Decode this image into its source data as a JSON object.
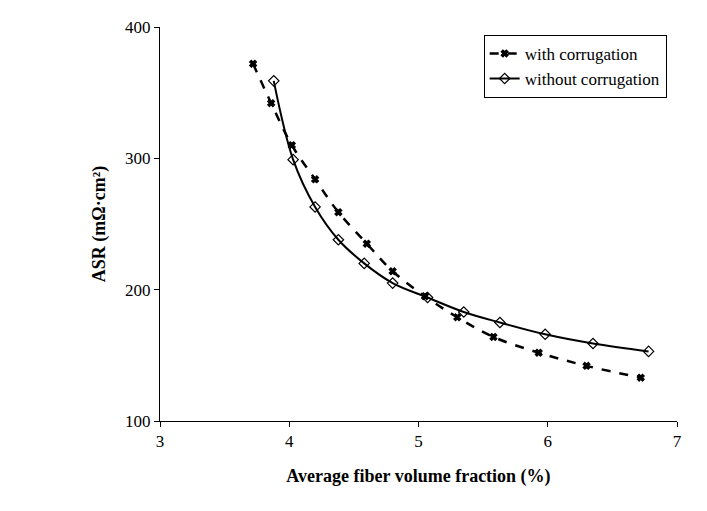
{
  "chart_data": {
    "type": "line",
    "x_label": "Average fiber volume fraction (%)",
    "y_label": "ASR (mΩ·cm²)",
    "xlim": [
      3,
      7
    ],
    "xticks": [
      3,
      4,
      5,
      6,
      7
    ],
    "ylim": [
      100,
      400
    ],
    "yticks": [
      100,
      200,
      300,
      400
    ],
    "grid": false,
    "legend": "upper right",
    "series": [
      {
        "name": "with corrugation",
        "color": "#000000",
        "marker": "x",
        "line_style": "dashed",
        "x": [
          3.72,
          3.86,
          4.02,
          4.2,
          4.38,
          4.6,
          4.8,
          5.05,
          5.3,
          5.58,
          5.93,
          6.3,
          6.72
        ],
        "values": [
          372,
          342,
          310,
          284,
          259,
          235,
          214,
          195,
          179,
          164,
          152,
          142,
          133
        ]
      },
      {
        "name": "without corrugation",
        "color": "#000000",
        "marker": "diamond-open",
        "line_style": "solid",
        "x": [
          3.88,
          4.03,
          4.2,
          4.38,
          4.58,
          4.8,
          5.07,
          5.35,
          5.63,
          5.98,
          6.35,
          6.78
        ],
        "values": [
          359,
          299,
          263,
          238,
          220,
          205,
          194,
          183,
          175,
          166,
          159,
          153
        ]
      }
    ]
  }
}
